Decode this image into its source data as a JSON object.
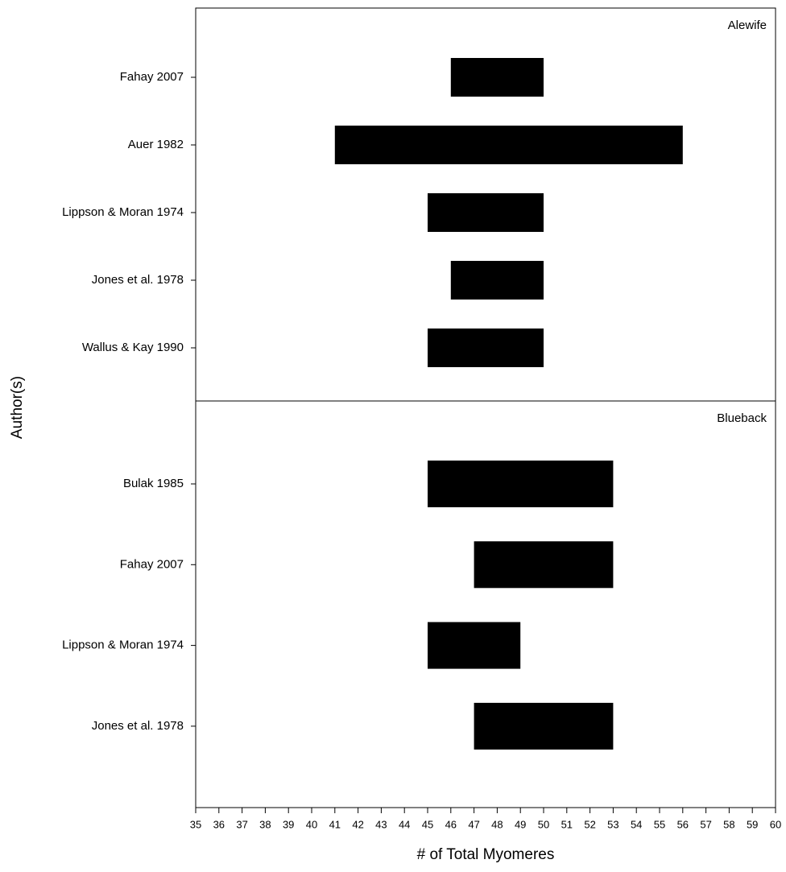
{
  "chart_data": {
    "type": "range-bar",
    "color": "#000000",
    "xlabel": "# of Total Myomeres",
    "ylabel": "Author(s)",
    "xlim": [
      35,
      60
    ],
    "xticks": [
      35,
      36,
      37,
      38,
      39,
      40,
      41,
      42,
      43,
      44,
      45,
      46,
      47,
      48,
      49,
      50,
      51,
      52,
      53,
      54,
      55,
      56,
      57,
      58,
      59,
      60
    ],
    "panels": [
      {
        "label": "Alewife",
        "categories": [
          "Fahay 2007",
          "Auer 1982",
          "Lippson & Moran 1974",
          "Jones et al. 1978",
          "Wallus & Kay 1990"
        ],
        "low": [
          46,
          41,
          45,
          46,
          45
        ],
        "high": [
          50,
          56,
          50,
          50,
          50
        ]
      },
      {
        "label": "Blueback",
        "categories": [
          "Bulak 1985",
          "Fahay 2007",
          "Lippson & Moran 1974",
          "Jones et al. 1978"
        ],
        "low": [
          45,
          47,
          45,
          47
        ],
        "high": [
          53,
          53,
          49,
          53
        ]
      }
    ]
  }
}
